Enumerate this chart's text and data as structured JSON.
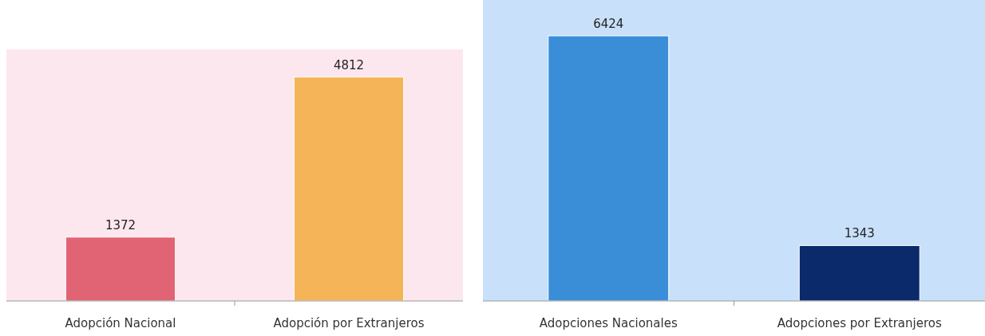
{
  "chart_data": [
    {
      "type": "bar",
      "categories": [
        "Adopción Nacional",
        "Adopción por Extranjeros"
      ],
      "values": [
        1372,
        4812
      ],
      "colors": [
        "#e06474",
        "#f4b457"
      ],
      "data_labels": true
    },
    {
      "type": "bar",
      "categories": [
        "Adopciones Nacionales",
        "Adopciones por Extranjeros"
      ],
      "values": [
        6424,
        1343
      ],
      "colors": [
        "#3a8ed8",
        "#0b2a6b"
      ],
      "data_labels": true
    }
  ]
}
